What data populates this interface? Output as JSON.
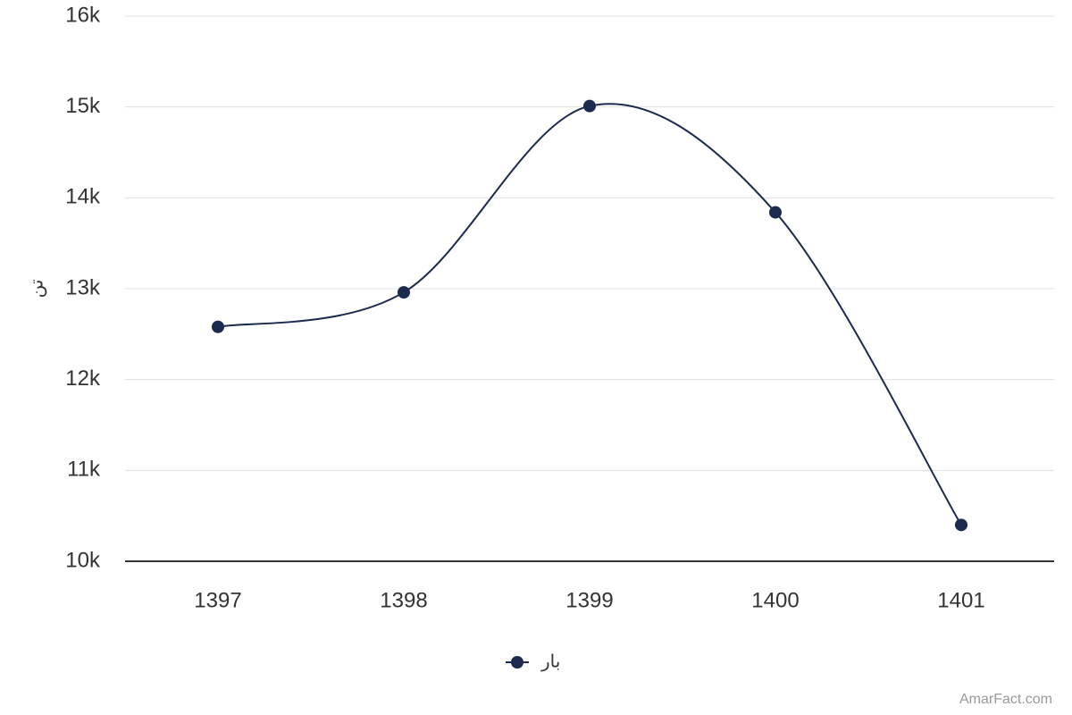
{
  "chart_data": {
    "type": "line",
    "y_label": "تن",
    "categories": [
      "1397",
      "1398",
      "1399",
      "1400",
      "1401"
    ],
    "series": [
      {
        "name": "بار",
        "color": "#1b2a4e",
        "values": [
          12580,
          12960,
          15010,
          13840,
          10400
        ]
      }
    ],
    "ylim": [
      10000,
      16000
    ],
    "yticks": [
      {
        "value": 10000,
        "label": "10k"
      },
      {
        "value": 11000,
        "label": "11k"
      },
      {
        "value": 12000,
        "label": "12k"
      },
      {
        "value": 13000,
        "label": "13k"
      },
      {
        "value": 14000,
        "label": "14k"
      },
      {
        "value": 15000,
        "label": "15k"
      },
      {
        "value": 16000,
        "label": "16k"
      }
    ],
    "grid": true,
    "smooth": true,
    "legend": "bottom",
    "credit": "AmarFact.com"
  }
}
